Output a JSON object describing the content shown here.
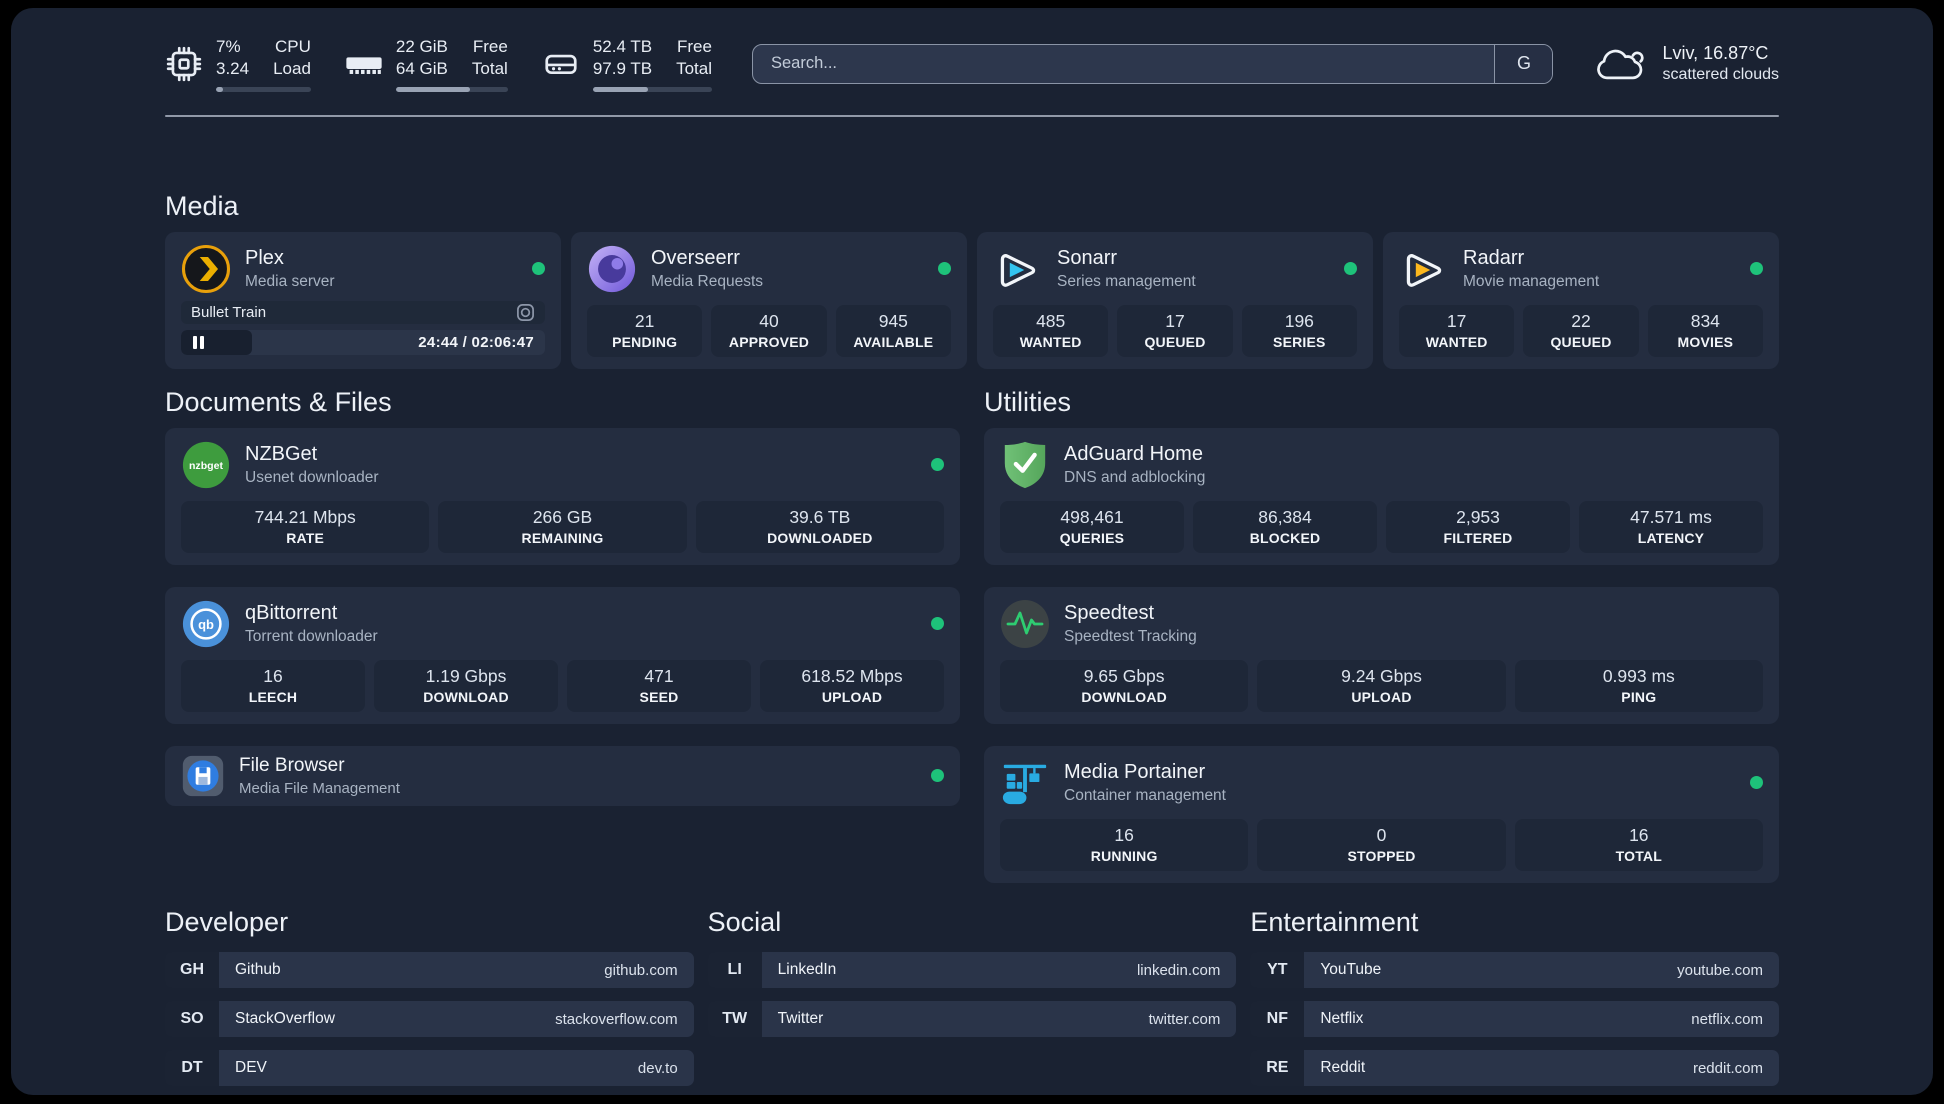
{
  "header": {
    "stats": [
      {
        "icon": "cpu-icon",
        "value_top": "7%",
        "value_bottom": "3.24",
        "label_top": "CPU",
        "label_bottom": "Load",
        "progress_pct": 7
      },
      {
        "icon": "ram-icon",
        "value_top": "22 GiB",
        "value_bottom": "64 GiB",
        "label_top": "Free",
        "label_bottom": "Total",
        "progress_pct": 66
      },
      {
        "icon": "disk-icon",
        "value_top": "52.4 TB",
        "value_bottom": "97.9 TB",
        "label_top": "Free",
        "label_bottom": "Total",
        "progress_pct": 46
      }
    ],
    "search": {
      "placeholder": "Search...",
      "engine_button": "G"
    },
    "weather": {
      "location_temp": "Lviv, 16.87°C",
      "condition": "scattered clouds"
    }
  },
  "media": {
    "title": "Media",
    "plex": {
      "name": "Plex",
      "subtitle": "Media server",
      "player": {
        "title": "Bullet Train",
        "time": "24:44 / 02:06:47",
        "progress_pct": 19.5
      }
    },
    "overseerr": {
      "name": "Overseerr",
      "subtitle": "Media Requests",
      "stats": [
        {
          "value": "21",
          "label": "PENDING"
        },
        {
          "value": "40",
          "label": "APPROVED"
        },
        {
          "value": "945",
          "label": "AVAILABLE"
        }
      ]
    },
    "sonarr": {
      "name": "Sonarr",
      "subtitle": "Series management",
      "stats": [
        {
          "value": "485",
          "label": "WANTED"
        },
        {
          "value": "17",
          "label": "QUEUED"
        },
        {
          "value": "196",
          "label": "SERIES"
        }
      ]
    },
    "radarr": {
      "name": "Radarr",
      "subtitle": "Movie management",
      "stats": [
        {
          "value": "17",
          "label": "WANTED"
        },
        {
          "value": "22",
          "label": "QUEUED"
        },
        {
          "value": "834",
          "label": "MOVIES"
        }
      ]
    }
  },
  "documents": {
    "title": "Documents & Files",
    "nzbget": {
      "name": "NZBGet",
      "subtitle": "Usenet downloader",
      "icon_text": "nzbget",
      "stats": [
        {
          "value": "744.21 Mbps",
          "label": "RATE"
        },
        {
          "value": "266 GB",
          "label": "REMAINING"
        },
        {
          "value": "39.6 TB",
          "label": "DOWNLOADED"
        }
      ]
    },
    "qbittorrent": {
      "name": "qBittorrent",
      "subtitle": "Torrent downloader",
      "icon_text": "qb",
      "stats": [
        {
          "value": "16",
          "label": "LEECH"
        },
        {
          "value": "1.19 Gbps",
          "label": "DOWNLOAD"
        },
        {
          "value": "471",
          "label": "SEED"
        },
        {
          "value": "618.52 Mbps",
          "label": "UPLOAD"
        }
      ]
    },
    "filebrowser": {
      "name": "File Browser",
      "subtitle": "Media File Management"
    }
  },
  "utilities": {
    "title": "Utilities",
    "adguard": {
      "name": "AdGuard Home",
      "subtitle": "DNS and adblocking",
      "stats": [
        {
          "value": "498,461",
          "label": "QUERIES"
        },
        {
          "value": "86,384",
          "label": "BLOCKED"
        },
        {
          "value": "2,953",
          "label": "FILTERED"
        },
        {
          "value": "47.571 ms",
          "label": "LATENCY"
        }
      ]
    },
    "speedtest": {
      "name": "Speedtest",
      "subtitle": "Speedtest Tracking",
      "stats": [
        {
          "value": "9.65 Gbps",
          "label": "DOWNLOAD"
        },
        {
          "value": "9.24 Gbps",
          "label": "UPLOAD"
        },
        {
          "value": "0.993 ms",
          "label": "PING"
        }
      ]
    },
    "portainer": {
      "name": "Media Portainer",
      "subtitle": "Container management",
      "stats": [
        {
          "value": "16",
          "label": "RUNNING"
        },
        {
          "value": "0",
          "label": "STOPPED"
        },
        {
          "value": "16",
          "label": "TOTAL"
        }
      ]
    }
  },
  "links": {
    "developer": {
      "title": "Developer",
      "items": [
        {
          "abbr": "GH",
          "name": "Github",
          "url": "github.com"
        },
        {
          "abbr": "SO",
          "name": "StackOverflow",
          "url": "stackoverflow.com"
        },
        {
          "abbr": "DT",
          "name": "DEV",
          "url": "dev.to"
        }
      ]
    },
    "social": {
      "title": "Social",
      "items": [
        {
          "abbr": "LI",
          "name": "LinkedIn",
          "url": "linkedin.com"
        },
        {
          "abbr": "TW",
          "name": "Twitter",
          "url": "twitter.com"
        }
      ]
    },
    "entertainment": {
      "title": "Entertainment",
      "items": [
        {
          "abbr": "YT",
          "name": "YouTube",
          "url": "youtube.com"
        },
        {
          "abbr": "NF",
          "name": "Netflix",
          "url": "netflix.com"
        },
        {
          "abbr": "RE",
          "name": "Reddit",
          "url": "reddit.com"
        }
      ]
    }
  },
  "colors": {
    "status_online": "#1ec27a",
    "plex_orange": "#ebaf00",
    "sonarr_blue": "#33c4f0",
    "radarr_yellow": "#fdb81e",
    "nzbget_green": "#3e9c3e",
    "qbittorrent_blue": "#4a91da",
    "adguard_green": "#63bc6c",
    "speedtest_pulse": "#2ecc71",
    "portainer_blue": "#29abe2"
  }
}
